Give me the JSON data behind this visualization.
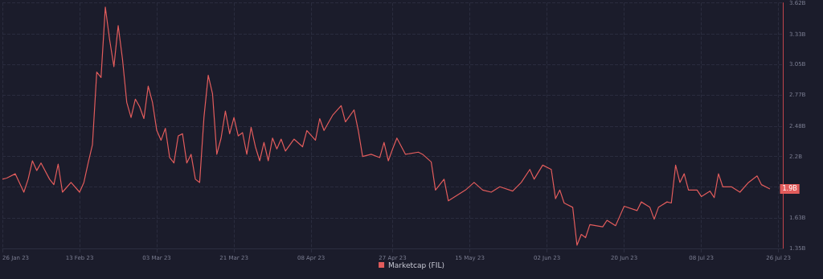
{
  "chart_data": {
    "type": "line",
    "legend": "bottom",
    "grid": true,
    "marker": "none",
    "line_style": "solid",
    "x": [
      "2023-01-26",
      "2023-01-27",
      "2023-01-29",
      "2023-01-31",
      "2023-02-01",
      "2023-02-02",
      "2023-02-03",
      "2023-02-04",
      "2023-02-06",
      "2023-02-07",
      "2023-02-08",
      "2023-02-09",
      "2023-02-11",
      "2023-02-13",
      "2023-02-14",
      "2023-02-15",
      "2023-02-16",
      "2023-02-17",
      "2023-02-18",
      "2023-02-19",
      "2023-02-20",
      "2023-02-21",
      "2023-02-22",
      "2023-02-23",
      "2023-02-24",
      "2023-02-25",
      "2023-02-26",
      "2023-02-27",
      "2023-02-28",
      "2023-03-01",
      "2023-03-02",
      "2023-03-03",
      "2023-03-04",
      "2023-03-05",
      "2023-03-06",
      "2023-03-07",
      "2023-03-08",
      "2023-03-09",
      "2023-03-10",
      "2023-03-11",
      "2023-03-12",
      "2023-03-13",
      "2023-03-14",
      "2023-03-15",
      "2023-03-16",
      "2023-03-17",
      "2023-03-18",
      "2023-03-19",
      "2023-03-20",
      "2023-03-21",
      "2023-03-22",
      "2023-03-23",
      "2023-03-24",
      "2023-03-25",
      "2023-03-26",
      "2023-03-27",
      "2023-03-28",
      "2023-03-29",
      "2023-03-30",
      "2023-03-31",
      "2023-04-01",
      "2023-04-02",
      "2023-04-04",
      "2023-04-06",
      "2023-04-07",
      "2023-04-09",
      "2023-04-10",
      "2023-04-11",
      "2023-04-13",
      "2023-04-15",
      "2023-04-16",
      "2023-04-18",
      "2023-04-19",
      "2023-04-20",
      "2023-04-22",
      "2023-04-24",
      "2023-04-25",
      "2023-04-26",
      "2023-04-27",
      "2023-04-28",
      "2023-04-30",
      "2023-05-03",
      "2023-05-04",
      "2023-05-06",
      "2023-05-07",
      "2023-05-09",
      "2023-05-10",
      "2023-05-14",
      "2023-05-16",
      "2023-05-18",
      "2023-05-20",
      "2023-05-22",
      "2023-05-25",
      "2023-05-27",
      "2023-05-29",
      "2023-05-30",
      "2023-06-01",
      "2023-06-03",
      "2023-06-04",
      "2023-06-05",
      "2023-06-06",
      "2023-06-08",
      "2023-06-09",
      "2023-06-10",
      "2023-06-11",
      "2023-06-12",
      "2023-06-15",
      "2023-06-16",
      "2023-06-18",
      "2023-06-19",
      "2023-06-20",
      "2023-06-23",
      "2023-06-24",
      "2023-06-26",
      "2023-06-27",
      "2023-06-28",
      "2023-06-30",
      "2023-07-01",
      "2023-07-02",
      "2023-07-03",
      "2023-07-04",
      "2023-07-05",
      "2023-07-07",
      "2023-07-08",
      "2023-07-10",
      "2023-07-11",
      "2023-07-12",
      "2023-07-13",
      "2023-07-15",
      "2023-07-17",
      "2023-07-19",
      "2023-07-21",
      "2023-07-22",
      "2023-07-24"
    ],
    "series": [
      {
        "name": "Marketcap (FIL)",
        "color": "#e25c5c",
        "values": [
          1.99,
          2.0,
          2.04,
          1.87,
          1.99,
          2.16,
          2.07,
          2.14,
          1.99,
          1.94,
          2.13,
          1.87,
          1.96,
          1.87,
          1.96,
          2.14,
          2.31,
          2.98,
          2.93,
          3.58,
          3.28,
          3.03,
          3.41,
          3.1,
          2.7,
          2.56,
          2.73,
          2.66,
          2.55,
          2.85,
          2.7,
          2.44,
          2.35,
          2.46,
          2.19,
          2.14,
          2.39,
          2.41,
          2.14,
          2.22,
          1.99,
          1.96,
          2.56,
          2.95,
          2.78,
          2.22,
          2.37,
          2.62,
          2.41,
          2.56,
          2.39,
          2.42,
          2.22,
          2.47,
          2.29,
          2.16,
          2.33,
          2.16,
          2.37,
          2.27,
          2.36,
          2.25,
          2.36,
          2.29,
          2.44,
          2.35,
          2.55,
          2.44,
          2.58,
          2.67,
          2.52,
          2.63,
          2.44,
          2.2,
          2.22,
          2.19,
          2.33,
          2.16,
          2.27,
          2.37,
          2.22,
          2.24,
          2.22,
          2.15,
          1.89,
          1.99,
          1.79,
          1.89,
          1.96,
          1.89,
          1.87,
          1.92,
          1.88,
          1.96,
          2.08,
          1.99,
          2.12,
          2.08,
          1.81,
          1.89,
          1.77,
          1.73,
          1.38,
          1.48,
          1.45,
          1.57,
          1.55,
          1.61,
          1.56,
          1.65,
          1.74,
          1.7,
          1.78,
          1.73,
          1.62,
          1.73,
          1.78,
          1.77,
          2.12,
          1.96,
          2.04,
          1.89,
          1.89,
          1.83,
          1.88,
          1.82,
          2.04,
          1.92,
          1.92,
          1.87,
          1.96,
          2.02,
          1.94,
          1.9
        ]
      }
    ],
    "xlim": [
      "2023-01-26",
      "2023-07-27"
    ],
    "xticks": [
      {
        "value": "2023-01-26",
        "label": "26 Jan 23"
      },
      {
        "value": "2023-02-13",
        "label": "13 Feb 23"
      },
      {
        "value": "2023-03-03",
        "label": "03 Mar 23"
      },
      {
        "value": "2023-03-21",
        "label": "21 Mar 23"
      },
      {
        "value": "2023-04-08",
        "label": "08 Apr 23"
      },
      {
        "value": "2023-04-27",
        "label": "27 Apr 23"
      },
      {
        "value": "2023-05-15",
        "label": "15 May 23"
      },
      {
        "value": "2023-06-02",
        "label": "02 Jun 23"
      },
      {
        "value": "2023-06-20",
        "label": "20 Jun 23"
      },
      {
        "value": "2023-07-08",
        "label": "08 Jul 23"
      },
      {
        "value": "2023-07-26",
        "label": "26 Jul 23"
      }
    ],
    "ylim": [
      1.35,
      3.62
    ],
    "yticks": [
      {
        "value": 1.35,
        "label": "1.35B"
      },
      {
        "value": 1.63,
        "label": "1.63B"
      },
      {
        "value": 1.92,
        "label": null
      },
      {
        "value": 2.2,
        "label": "2.2B"
      },
      {
        "value": 2.48,
        "label": "2.48B"
      },
      {
        "value": 2.77,
        "label": "2.77B"
      },
      {
        "value": 3.05,
        "label": "3.05B"
      },
      {
        "value": 3.33,
        "label": "3.33B"
      },
      {
        "value": 3.62,
        "label": "3.62B"
      }
    ],
    "annotations": [
      {
        "text": "1.9B",
        "x": "2023-07-24",
        "y": 1.9
      }
    ]
  }
}
